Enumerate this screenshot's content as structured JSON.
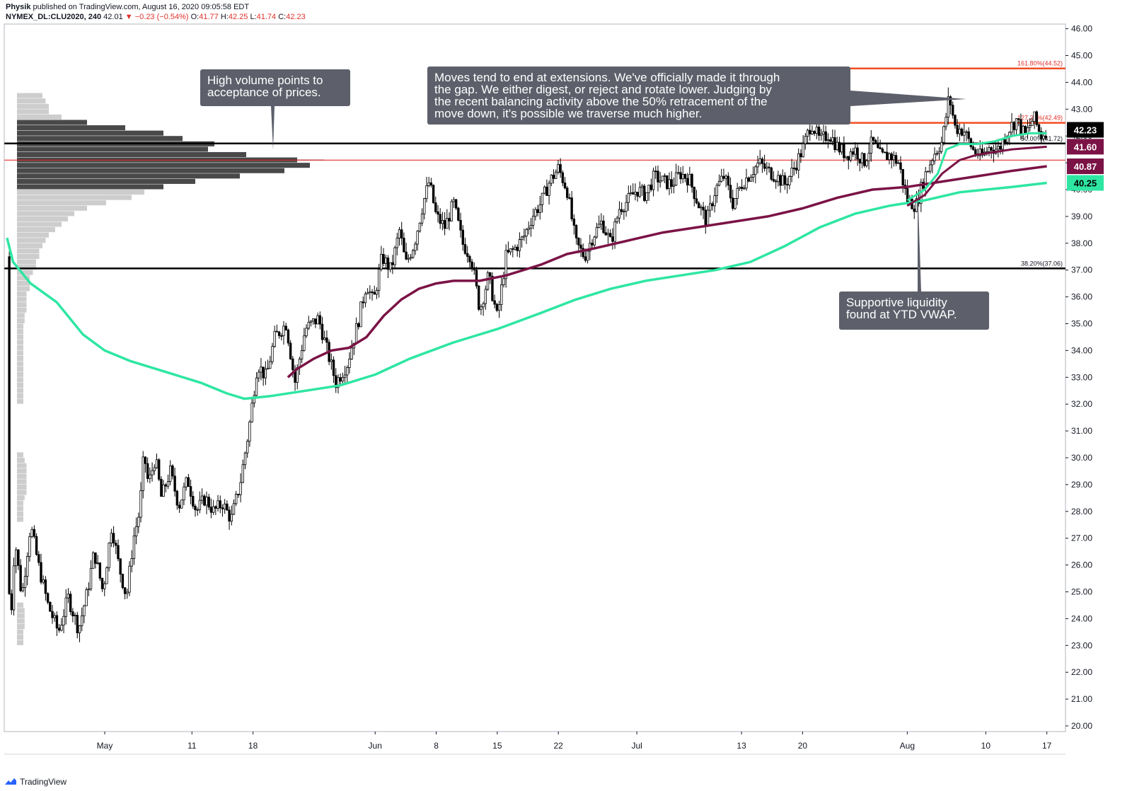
{
  "header": {
    "author": "Physik",
    "published": "published on TradingView.com, August 16, 2020 09:05:58 EDT",
    "symbol": "NYMEX_DL:CLU2020, 240",
    "last": "42.01",
    "change_arrow": "▼",
    "change": "−0.23 (−0.54%)",
    "o_label": "O:",
    "o": "41.77",
    "h_label": "H:",
    "h": "42.25",
    "l_label": "L:",
    "l": "41.74",
    "c_label": "C:",
    "c": "42.23"
  },
  "footer": {
    "brand": "TradingView",
    "logo_icon": "tradingview-logo-icon"
  },
  "colors": {
    "ytd_vwap": "#2ee6a2",
    "ma": "#7b1346",
    "level": "#000000",
    "extension": "#f04e23",
    "poc": "#e0312b",
    "annotation_bg": "#5d606b",
    "candle_up": "#ffffff",
    "candle_down": "#000000"
  },
  "chart_data": {
    "type": "candlestick",
    "symbol": "NYMEX_DL:CLU2020",
    "timeframe": "240",
    "ylim": [
      20,
      46
    ],
    "y_ticks": [
      "46.00",
      "45.00",
      "44.00",
      "43.00",
      "42.00",
      "41.00",
      "40.00",
      "39.00",
      "38.00",
      "37.00",
      "36.00",
      "35.00",
      "34.00",
      "33.00",
      "32.00",
      "31.00",
      "30.00",
      "29.00",
      "28.00",
      "27.00",
      "26.00",
      "25.00",
      "24.00",
      "23.00",
      "22.00",
      "21.00",
      "20.00"
    ],
    "x_ticks": [
      {
        "label": "May",
        "day": 0
      },
      {
        "label": "11",
        "day": 10
      },
      {
        "label": "18",
        "day": 17
      },
      {
        "label": "Jun",
        "day": 31
      },
      {
        "label": "8",
        "day": 38
      },
      {
        "label": "15",
        "day": 45
      },
      {
        "label": "22",
        "day": 52
      },
      {
        "label": "Jul",
        "day": 61
      },
      {
        "label": "13",
        "day": 73
      },
      {
        "label": "20",
        "day": 80
      },
      {
        "label": "Aug",
        "day": 92
      },
      {
        "label": "10",
        "day": 101
      },
      {
        "label": "17",
        "day": 108
      }
    ],
    "x_range_days": [
      -11,
      114
    ],
    "price_path": [
      [
        -11.2,
        37.5
      ],
      [
        -10.9,
        23.0
      ],
      [
        -10.3,
        27.0
      ],
      [
        -9.5,
        24.8
      ],
      [
        -8.5,
        27.5
      ],
      [
        -7.6,
        26.0
      ],
      [
        -6.5,
        24.5
      ],
      [
        -5.3,
        23.5
      ],
      [
        -4.2,
        24.8
      ],
      [
        -3.0,
        23.6
      ],
      [
        -2.0,
        25.0
      ],
      [
        -1.2,
        26.5
      ],
      [
        -0.2,
        25.0
      ],
      [
        0.8,
        27.5
      ],
      [
        1.6,
        26.0
      ],
      [
        2.5,
        24.8
      ],
      [
        3.3,
        27.0
      ],
      [
        4.0,
        28.0
      ],
      [
        4.5,
        30.2
      ],
      [
        5.0,
        29.0
      ],
      [
        5.8,
        30.0
      ],
      [
        6.5,
        28.5
      ],
      [
        7.5,
        29.5
      ],
      [
        8.5,
        28.2
      ],
      [
        9.5,
        29.2
      ],
      [
        10.5,
        28.0
      ],
      [
        11.5,
        28.5
      ],
      [
        12.5,
        28.0
      ],
      [
        13.5,
        28.3
      ],
      [
        14.5,
        27.7
      ],
      [
        15.5,
        29.0
      ],
      [
        16.5,
        31.0
      ],
      [
        17.5,
        33.5
      ],
      [
        18.5,
        33.0
      ],
      [
        19.5,
        34.5
      ],
      [
        20.8,
        35.0
      ],
      [
        21.8,
        32.8
      ],
      [
        23.0,
        34.8
      ],
      [
        24.5,
        35.2
      ],
      [
        25.5,
        34.0
      ],
      [
        26.5,
        32.8
      ],
      [
        27.8,
        33.5
      ],
      [
        29.0,
        35.0
      ],
      [
        30.0,
        36.5
      ],
      [
        30.8,
        35.8
      ],
      [
        31.8,
        37.5
      ],
      [
        32.8,
        37.0
      ],
      [
        33.8,
        38.5
      ],
      [
        34.5,
        37.2
      ],
      [
        35.5,
        38.0
      ],
      [
        36.5,
        39.5
      ],
      [
        37.2,
        40.3
      ],
      [
        38.0,
        39.0
      ],
      [
        39.0,
        38.6
      ],
      [
        40.0,
        39.5
      ],
      [
        41.0,
        38.0
      ],
      [
        42.0,
        37.5
      ],
      [
        43.0,
        35.5
      ],
      [
        44.0,
        36.8
      ],
      [
        45.0,
        35.2
      ],
      [
        46.0,
        37.5
      ],
      [
        47.0,
        37.8
      ],
      [
        48.0,
        38.2
      ],
      [
        49.0,
        39.0
      ],
      [
        50.0,
        39.5
      ],
      [
        51.0,
        40.3
      ],
      [
        52.0,
        40.8
      ],
      [
        53.0,
        40.0
      ],
      [
        54.0,
        38.0
      ],
      [
        55.0,
        37.5
      ],
      [
        56.0,
        38.3
      ],
      [
        57.0,
        38.8
      ],
      [
        58.0,
        38.0
      ],
      [
        59.0,
        39.3
      ],
      [
        60.0,
        39.6
      ],
      [
        61.0,
        40.0
      ],
      [
        62.0,
        39.8
      ],
      [
        63.0,
        40.5
      ],
      [
        64.0,
        40.3
      ],
      [
        65.0,
        40.2
      ],
      [
        66.0,
        40.6
      ],
      [
        67.0,
        40.4
      ],
      [
        68.0,
        39.5
      ],
      [
        69.0,
        38.8
      ],
      [
        70.0,
        40.0
      ],
      [
        71.0,
        40.5
      ],
      [
        72.0,
        39.5
      ],
      [
        73.0,
        40.2
      ],
      [
        74.0,
        40.6
      ],
      [
        75.0,
        41.0
      ],
      [
        76.0,
        40.7
      ],
      [
        77.0,
        40.5
      ],
      [
        78.0,
        40.2
      ],
      [
        79.0,
        40.8
      ],
      [
        80.0,
        41.5
      ],
      [
        81.0,
        42.5
      ],
      [
        82.0,
        41.8
      ],
      [
        83.0,
        42.1
      ],
      [
        84.0,
        41.6
      ],
      [
        85.0,
        41.3
      ],
      [
        86.0,
        41.5
      ],
      [
        87.0,
        41.0
      ],
      [
        88.0,
        41.8
      ],
      [
        89.0,
        41.2
      ],
      [
        90.0,
        41.3
      ],
      [
        91.0,
        41.0
      ],
      [
        92.0,
        39.6
      ],
      [
        93.0,
        39.4
      ],
      [
        94.0,
        40.5
      ],
      [
        95.0,
        41.3
      ],
      [
        96.0,
        41.8
      ],
      [
        96.8,
        43.5
      ],
      [
        97.5,
        42.3
      ],
      [
        98.5,
        42.2
      ],
      [
        99.5,
        41.5
      ],
      [
        100.5,
        41.2
      ],
      [
        101.5,
        41.6
      ],
      [
        102.5,
        41.5
      ],
      [
        103.5,
        42.2
      ],
      [
        104.5,
        42.6
      ],
      [
        105.5,
        42.0
      ],
      [
        106.5,
        42.7
      ],
      [
        107.3,
        42.0
      ],
      [
        108.0,
        42.23
      ]
    ],
    "ytd_vwap": [
      [
        -11.2,
        38.2
      ],
      [
        -10.5,
        37.3
      ],
      [
        -8.5,
        36.5
      ],
      [
        -5.5,
        35.8
      ],
      [
        -4.0,
        35.2
      ],
      [
        -2.5,
        34.6
      ],
      [
        0.0,
        34.0
      ],
      [
        3.0,
        33.6
      ],
      [
        7.0,
        33.2
      ],
      [
        11.0,
        32.8
      ],
      [
        14.0,
        32.4
      ],
      [
        16.0,
        32.2
      ],
      [
        19.0,
        32.3
      ],
      [
        23.0,
        32.5
      ],
      [
        27.0,
        32.7
      ],
      [
        31.0,
        33.1
      ],
      [
        35.0,
        33.7
      ],
      [
        40.0,
        34.3
      ],
      [
        45.0,
        34.8
      ],
      [
        50.0,
        35.4
      ],
      [
        54.0,
        35.9
      ],
      [
        58.0,
        36.3
      ],
      [
        62.0,
        36.6
      ],
      [
        66.0,
        36.8
      ],
      [
        70.0,
        37.0
      ],
      [
        74.0,
        37.3
      ],
      [
        78.0,
        37.9
      ],
      [
        82.0,
        38.6
      ],
      [
        86.0,
        39.1
      ],
      [
        90.0,
        39.4
      ],
      [
        94.0,
        39.6
      ],
      [
        98.0,
        39.9
      ],
      [
        104.0,
        40.1
      ],
      [
        108.0,
        40.25
      ]
    ],
    "ma": [
      [
        21.0,
        33.0
      ],
      [
        22.0,
        33.3
      ],
      [
        24.0,
        33.7
      ],
      [
        26.0,
        34.0
      ],
      [
        28.0,
        34.1
      ],
      [
        30.0,
        34.5
      ],
      [
        32.0,
        35.3
      ],
      [
        34.0,
        35.9
      ],
      [
        36.0,
        36.3
      ],
      [
        38.0,
        36.5
      ],
      [
        40.0,
        36.6
      ],
      [
        43.0,
        36.6
      ],
      [
        46.0,
        36.8
      ],
      [
        50.0,
        37.2
      ],
      [
        53.0,
        37.6
      ],
      [
        56.0,
        37.8
      ],
      [
        60.0,
        38.1
      ],
      [
        64.0,
        38.4
      ],
      [
        68.0,
        38.6
      ],
      [
        72.0,
        38.8
      ],
      [
        76.0,
        39.0
      ],
      [
        80.0,
        39.3
      ],
      [
        84.0,
        39.7
      ],
      [
        88.0,
        40.0
      ],
      [
        92.0,
        40.1
      ],
      [
        96.0,
        40.3
      ],
      [
        100.0,
        40.5
      ],
      [
        104.0,
        40.7
      ],
      [
        108.0,
        40.87
      ]
    ],
    "short_vwap": [
      [
        92.0,
        39.6
      ],
      [
        94.0,
        40.0
      ],
      [
        95.5,
        40.6
      ],
      [
        96.5,
        41.5
      ],
      [
        98.0,
        41.7
      ],
      [
        100.0,
        41.7
      ],
      [
        102.0,
        41.8
      ],
      [
        104.0,
        42.0
      ],
      [
        106.0,
        42.1
      ],
      [
        108.0,
        42.1
      ]
    ],
    "short_ma": [
      [
        92.0,
        39.4
      ],
      [
        94.0,
        39.8
      ],
      [
        96.0,
        40.6
      ],
      [
        98.0,
        41.1
      ],
      [
        100.0,
        41.3
      ],
      [
        102.0,
        41.4
      ],
      [
        104.0,
        41.5
      ],
      [
        106.0,
        41.55
      ],
      [
        108.0,
        41.6
      ]
    ],
    "price_labels": [
      {
        "text": "42.23",
        "y": 42.23,
        "color": "#000000"
      },
      {
        "text": "41.60",
        "y": 41.6,
        "color": "#7b1346"
      },
      {
        "text": "40.87",
        "y": 40.87,
        "color": "#7b1346"
      },
      {
        "text": "40.25",
        "y": 40.25,
        "color": "#2ee6a2"
      }
    ],
    "horizontal_levels": [
      {
        "y": 44.52,
        "color": "#f04e23",
        "x_start_day": 42.0,
        "label": "161.80%(44.52)"
      },
      {
        "y": 42.49,
        "color": "#f04e23",
        "x_start_day": 42.0,
        "label": "127.20%(42.49)"
      },
      {
        "y": 41.72,
        "color": "#000000",
        "x_start_day": -11.5,
        "label": "50.00%(41.72)"
      },
      {
        "y": 41.1,
        "color": "#e0312b",
        "x_start_day": -11.5,
        "label": ""
      },
      {
        "y": 37.06,
        "color": "#000000",
        "x_start_day": -11.5,
        "label": "38.20%(37.06)"
      }
    ],
    "volume_profile": [
      [
        43.5,
        4
      ],
      [
        43.3,
        4.5
      ],
      [
        43.1,
        5
      ],
      [
        42.9,
        5
      ],
      [
        42.7,
        7
      ],
      [
        42.5,
        11
      ],
      [
        42.3,
        17
      ],
      [
        42.1,
        23
      ],
      [
        41.9,
        26
      ],
      [
        41.7,
        31
      ],
      [
        41.5,
        30
      ],
      [
        41.3,
        36
      ],
      [
        41.1,
        44
      ],
      [
        40.9,
        46
      ],
      [
        40.7,
        42
      ],
      [
        40.5,
        35
      ],
      [
        40.3,
        28
      ],
      [
        40.1,
        23
      ],
      [
        39.9,
        20
      ],
      [
        39.7,
        18
      ],
      [
        39.5,
        14
      ],
      [
        39.3,
        11
      ],
      [
        39.1,
        9
      ],
      [
        38.9,
        8
      ],
      [
        38.7,
        7
      ],
      [
        38.5,
        6
      ],
      [
        38.3,
        5
      ],
      [
        38.1,
        4.5
      ],
      [
        37.9,
        4
      ],
      [
        37.7,
        3.5
      ],
      [
        37.5,
        3.5
      ],
      [
        37.3,
        3
      ],
      [
        37.1,
        3
      ],
      [
        36.9,
        2.5
      ],
      [
        36.7,
        2
      ],
      [
        36.5,
        2
      ],
      [
        36.3,
        2
      ],
      [
        36.1,
        1.5
      ],
      [
        35.9,
        1.5
      ],
      [
        35.7,
        1.5
      ],
      [
        35.5,
        1.5
      ],
      [
        35.3,
        1.2
      ],
      [
        35.1,
        1.2
      ],
      [
        34.9,
        1
      ],
      [
        34.7,
        1
      ],
      [
        34.5,
        1
      ],
      [
        34.3,
        1
      ],
      [
        34.1,
        1
      ],
      [
        33.9,
        1
      ],
      [
        33.7,
        1
      ],
      [
        33.5,
        1
      ],
      [
        33.3,
        1
      ],
      [
        33.1,
        1
      ],
      [
        32.9,
        1
      ],
      [
        32.7,
        1
      ],
      [
        32.5,
        1
      ],
      [
        32.3,
        1
      ],
      [
        32.1,
        1
      ],
      [
        30.1,
        1
      ],
      [
        29.9,
        1.2
      ],
      [
        29.7,
        1.5
      ],
      [
        29.5,
        1.5
      ],
      [
        29.3,
        1.5
      ],
      [
        29.1,
        1.5
      ],
      [
        28.9,
        1.5
      ],
      [
        28.7,
        1.5
      ],
      [
        28.5,
        1.2
      ],
      [
        28.3,
        1
      ],
      [
        28.1,
        1
      ],
      [
        27.9,
        1
      ],
      [
        27.7,
        1
      ],
      [
        24.5,
        1
      ],
      [
        24.3,
        1.2
      ],
      [
        24.1,
        1.2
      ],
      [
        23.9,
        1.2
      ],
      [
        23.7,
        1.2
      ],
      [
        23.5,
        1
      ],
      [
        23.3,
        1
      ],
      [
        23.1,
        1
      ]
    ],
    "annotations": [
      {
        "text": "High volume points to acceptance of prices.",
        "lines": [
          "High volume points to",
          "acceptance of prices."
        ]
      },
      {
        "text": "Moves tend to end at extensions. We've officially made it through the gap. We either digest, or reject and rotate lower. Judging by the recent balancing activity above the 50% retracement of the move down, it's possible we traverse much higher.",
        "lines": [
          "Moves tend to end at extensions. We've officially made it through",
          "the gap. We either digest, or reject and rotate lower. Judging by",
          "the recent balancing activity above the 50% retracement of the",
          "move down, it's possible we traverse much higher."
        ]
      },
      {
        "text": "Supportive liquidity found at YTD VWAP.",
        "lines": [
          "Supportive liquidity",
          "found at YTD VWAP."
        ]
      }
    ]
  }
}
